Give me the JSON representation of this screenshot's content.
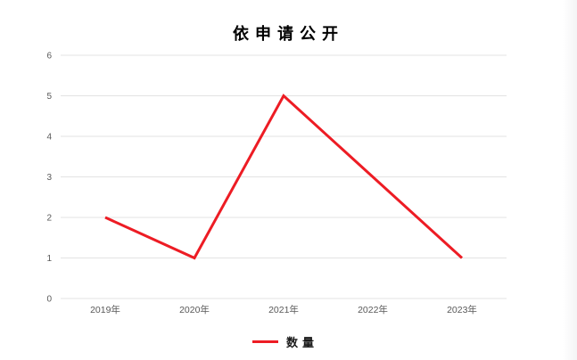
{
  "chart_data": {
    "type": "line",
    "title": "依申请公开",
    "categories": [
      "2019年",
      "2020年",
      "2021年",
      "2022年",
      "2023年"
    ],
    "series": [
      {
        "name": "数量",
        "values": [
          2,
          1,
          5,
          3,
          1
        ]
      }
    ],
    "ylim": [
      0,
      6
    ],
    "y_ticks": [
      0,
      1,
      2,
      3,
      4,
      5,
      6
    ],
    "grid": "horizontal",
    "legend_position": "bottom",
    "colors": {
      "line": "#ED1C24",
      "gridline": "#e3e3e3",
      "tick_label": "#595959",
      "title_text": "#000000",
      "background": "#ffffff"
    }
  },
  "legend": {
    "label": "数量"
  }
}
